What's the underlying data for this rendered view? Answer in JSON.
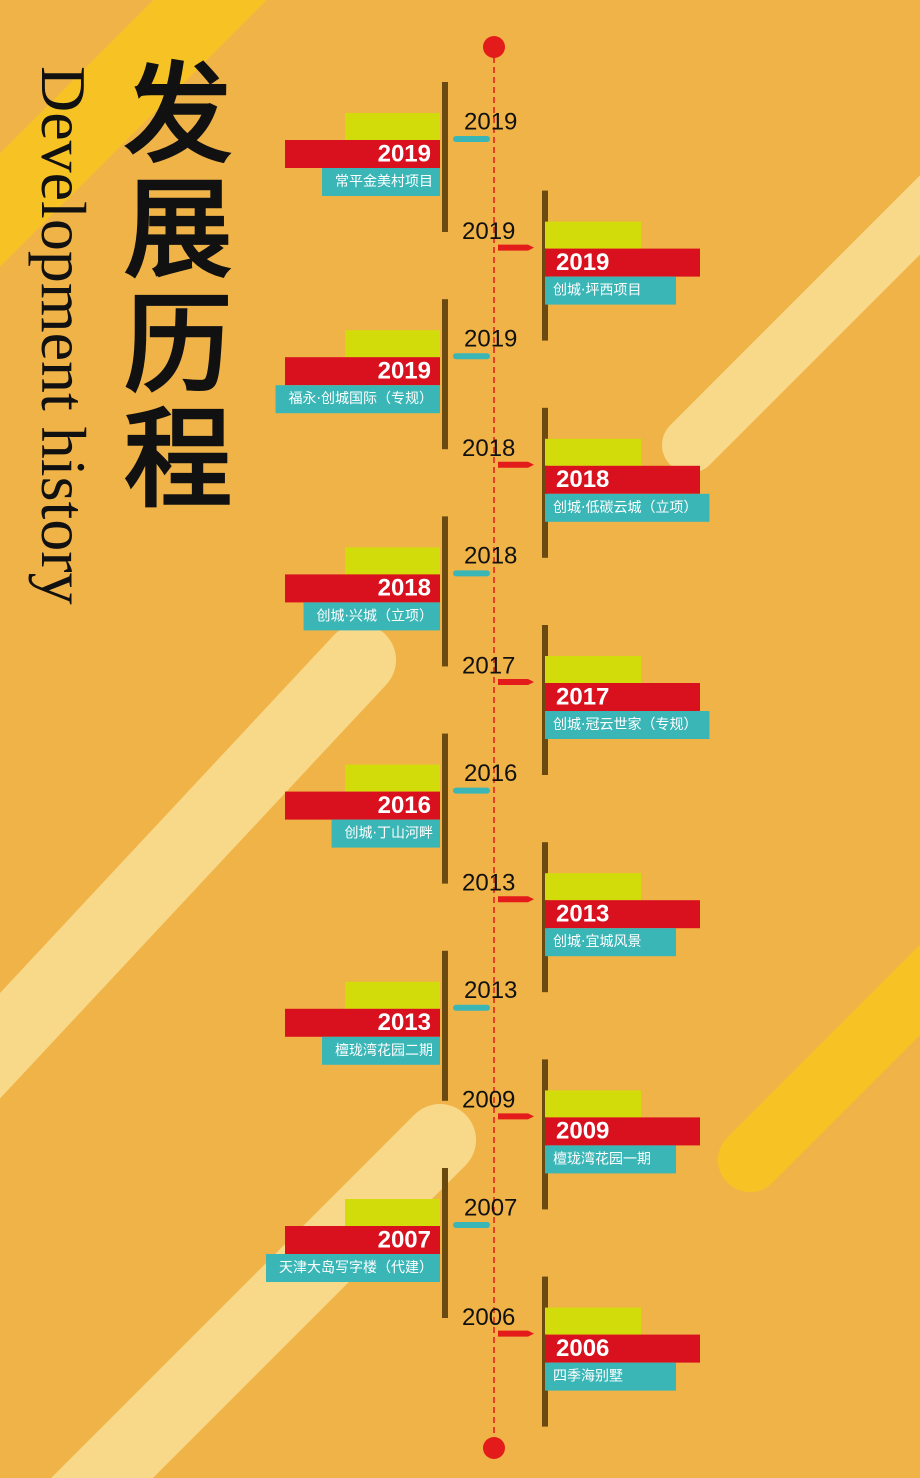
{
  "title": "发展历程",
  "subtitle": "Development history",
  "timeline": [
    {
      "year": "2019",
      "name": "常平金美村项目"
    },
    {
      "year": "2019",
      "name": "创城·坪西项目"
    },
    {
      "year": "2019",
      "name": "福永·创城国际（专规）"
    },
    {
      "year": "2018",
      "name": "创城·低碳云城（立项）"
    },
    {
      "year": "2018",
      "name": "创城·兴城（立项）"
    },
    {
      "year": "2017",
      "name": "创城·冠云世家（专规）"
    },
    {
      "year": "2016",
      "name": "创城·丁山河畔"
    },
    {
      "year": "2013",
      "name": "创城·宜城风景"
    },
    {
      "year": "2013",
      "name": "檀珑湾花园二期"
    },
    {
      "year": "2009",
      "name": "檀珑湾花园一期"
    },
    {
      "year": "2007",
      "name": "天津大岛写字楼（代建）"
    },
    {
      "year": "2006",
      "name": "四季海别墅"
    }
  ]
}
